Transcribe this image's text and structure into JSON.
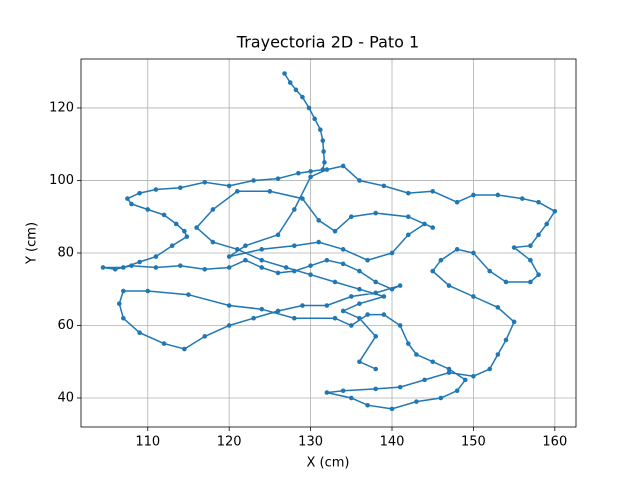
{
  "chart_data": {
    "type": "line",
    "title": "Trayectoria 2D - Pato 1",
    "x_label": "X (cm)",
    "y_label": "Y (cm)",
    "color": "#1f77b4",
    "grid": true,
    "markers": true,
    "xlim": [
      101.8,
      162.6
    ],
    "ylim": [
      32.0,
      133.5
    ],
    "xticks": [
      110,
      120,
      130,
      140,
      150,
      160
    ],
    "yticks": [
      40,
      60,
      80,
      100,
      120
    ],
    "x": [
      126.8,
      127.5,
      128.2,
      129,
      129.8,
      130.5,
      131.2,
      131.5,
      131.6,
      131.7,
      131.5,
      130,
      128.5,
      126,
      123,
      120,
      117,
      114,
      111,
      109,
      107.5,
      108,
      110,
      112,
      113.5,
      114.5,
      114.8,
      113,
      111,
      109,
      107,
      104.5,
      106,
      108,
      111,
      114,
      117,
      120,
      122,
      124,
      126,
      128,
      130,
      132,
      134,
      136,
      138,
      140,
      141,
      138,
      135,
      132,
      129,
      126,
      123,
      120,
      117,
      114.5,
      112,
      109,
      107,
      106.5,
      107,
      110,
      115,
      120,
      124,
      128,
      133,
      135,
      137,
      139,
      141,
      142,
      143,
      145,
      147,
      149,
      148,
      146,
      143,
      140,
      137,
      135,
      132,
      134,
      138,
      141,
      144,
      147,
      150,
      152,
      153,
      154,
      155,
      153,
      150,
      147,
      145,
      146,
      148,
      150,
      152,
      154,
      157,
      158,
      157,
      155,
      157,
      158,
      159,
      160,
      158,
      156,
      153,
      150,
      148,
      145,
      142,
      139,
      136,
      134,
      132,
      130,
      128,
      126,
      122,
      120,
      124,
      128,
      131,
      134,
      137,
      140,
      142,
      144,
      145,
      142,
      138,
      135,
      133,
      131,
      129,
      125,
      121,
      118,
      116,
      118,
      121,
      124,
      127,
      130,
      133,
      136,
      139,
      136,
      134,
      136,
      138,
      136,
      138
    ],
    "values": [
      129.5,
      127,
      125,
      123,
      120,
      117,
      114,
      111,
      108,
      105,
      103,
      102.5,
      102,
      100.5,
      100,
      98.5,
      99.5,
      98,
      97.5,
      96.5,
      95,
      93.5,
      92,
      90.5,
      88,
      86,
      84.5,
      82,
      79,
      77.5,
      76,
      76,
      75.5,
      76.5,
      76,
      76.5,
      75.5,
      76,
      78,
      76,
      74.5,
      75,
      76.5,
      78,
      77,
      75,
      72,
      70,
      71,
      69,
      68,
      65.5,
      65.5,
      64,
      62,
      60,
      57,
      53.5,
      55,
      58,
      62,
      66,
      69.5,
      69.5,
      68.5,
      65.5,
      64.5,
      62,
      62,
      60,
      63,
      63,
      60,
      55,
      52,
      50,
      48,
      45,
      42,
      40,
      39,
      37,
      38,
      40,
      41.5,
      42,
      42.5,
      43,
      45,
      47,
      46,
      48,
      52,
      56,
      61,
      65,
      68,
      71,
      75,
      78,
      81,
      80,
      75,
      72,
      72,
      74,
      78,
      81.5,
      82,
      85,
      88,
      91.5,
      94,
      95,
      96,
      96,
      94,
      97,
      96.5,
      98.5,
      100,
      104,
      103,
      101,
      92,
      85,
      82,
      79,
      81,
      82,
      83,
      81,
      78,
      80,
      85,
      88,
      87,
      90,
      91,
      90,
      86,
      89,
      95,
      97,
      97,
      92,
      87,
      83,
      81,
      78,
      76,
      74,
      72,
      70,
      68,
      66,
      64,
      62,
      57,
      50,
      48
    ]
  }
}
